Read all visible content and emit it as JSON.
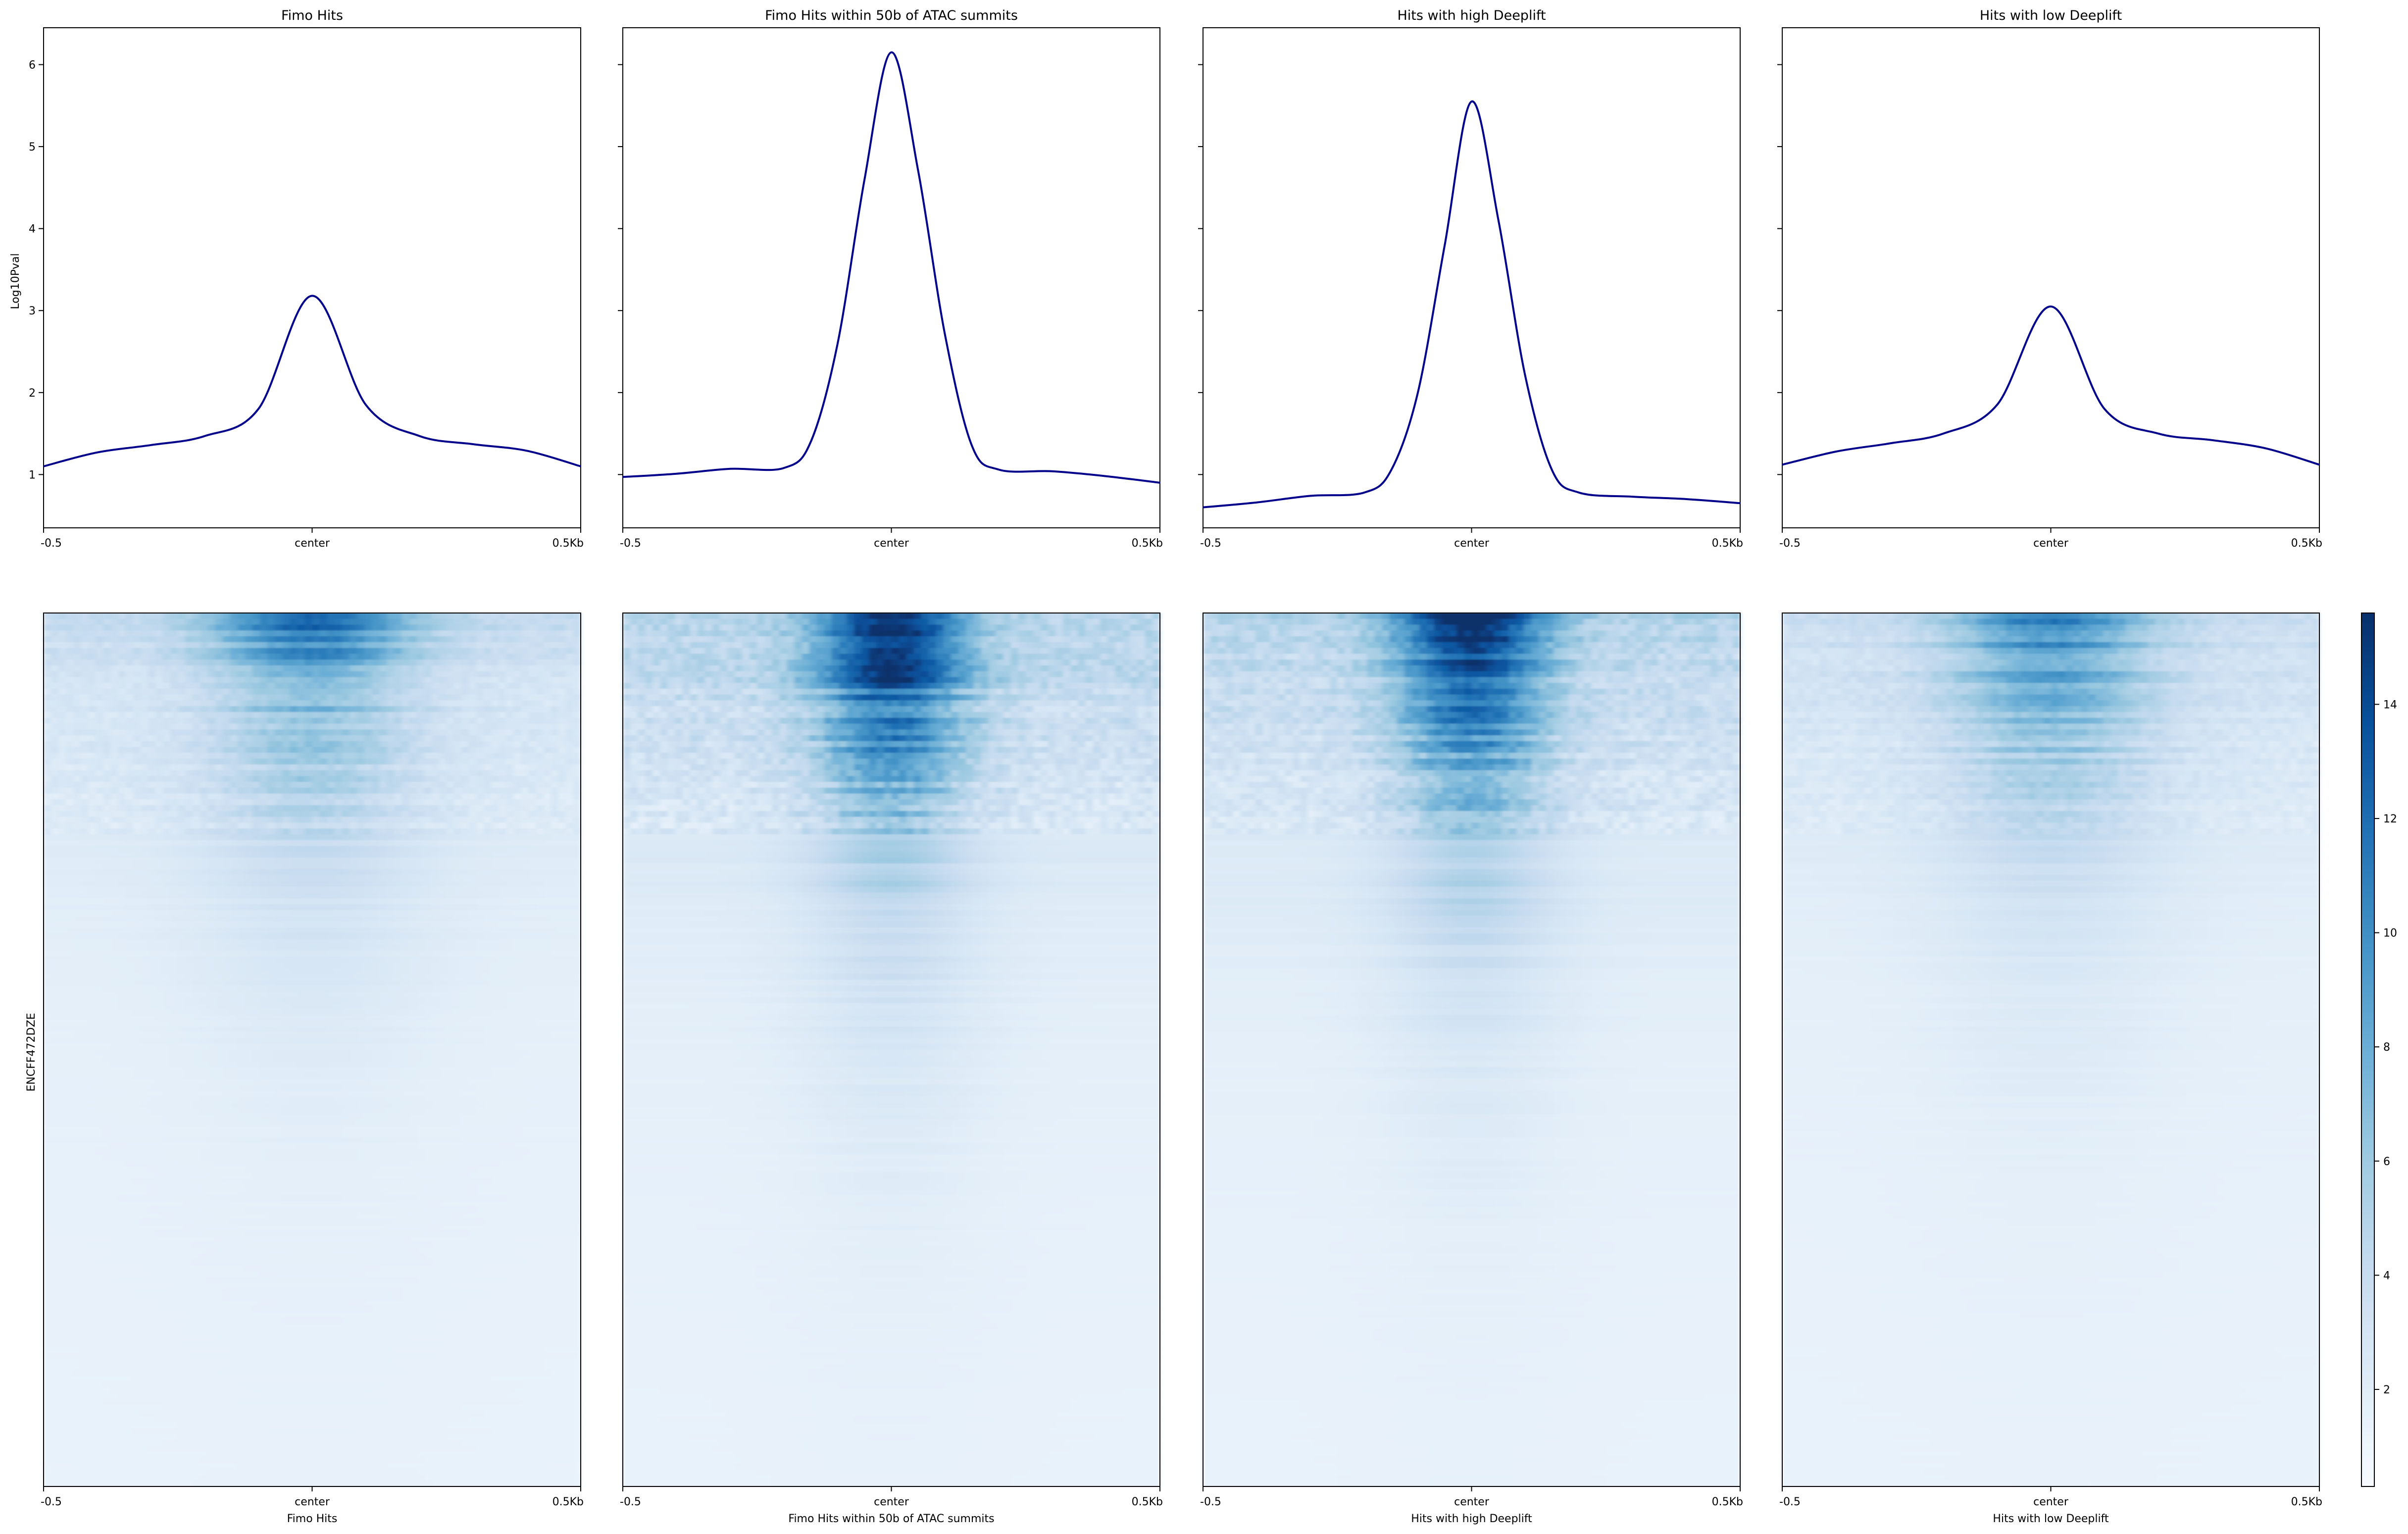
{
  "chart_data": [
    {
      "type": "line",
      "panel": "profile",
      "title": "Fimo Hits",
      "ylabel": "Log10Pval",
      "x": [
        -0.5,
        -0.4,
        -0.3,
        -0.2,
        -0.1,
        0,
        0.1,
        0.2,
        0.3,
        0.4,
        0.5
      ],
      "xtick_labels": [
        "-0.5",
        "center",
        "0.5Kb"
      ],
      "ylim": [
        0.35,
        6.45
      ],
      "yticks": [
        1,
        2,
        3,
        4,
        5,
        6
      ],
      "series": [
        {
          "values": [
            1.1,
            1.27,
            1.36,
            1.47,
            1.8,
            3.18,
            1.85,
            1.47,
            1.37,
            1.29,
            1.1
          ]
        }
      ],
      "line_color": "#00008b"
    },
    {
      "type": "line",
      "panel": "profile",
      "title": "Fimo Hits within 50b of ATAC summits",
      "x": [
        -0.5,
        -0.4,
        -0.3,
        -0.2,
        -0.15,
        -0.1,
        -0.05,
        0,
        0.05,
        0.1,
        0.15,
        0.2,
        0.3,
        0.4,
        0.5
      ],
      "xtick_labels": [
        "-0.5",
        "center",
        "0.5Kb"
      ],
      "ylim": [
        0.35,
        6.45
      ],
      "series": [
        {
          "values": [
            0.97,
            1.01,
            1.07,
            1.08,
            1.4,
            2.6,
            4.6,
            6.15,
            4.7,
            2.7,
            1.35,
            1.06,
            1.04,
            0.98,
            0.9
          ]
        }
      ],
      "line_color": "#00008b"
    },
    {
      "type": "line",
      "panel": "profile",
      "title": "Hits with high Deeplift",
      "x": [
        -0.5,
        -0.4,
        -0.3,
        -0.2,
        -0.15,
        -0.1,
        -0.05,
        0,
        0.05,
        0.1,
        0.15,
        0.2,
        0.3,
        0.4,
        0.5
      ],
      "xtick_labels": [
        "-0.5",
        "center",
        "0.5Kb"
      ],
      "ylim": [
        0.35,
        6.45
      ],
      "series": [
        {
          "values": [
            0.6,
            0.66,
            0.74,
            0.78,
            1.05,
            2.0,
            3.8,
            5.55,
            4.1,
            2.2,
            1.05,
            0.78,
            0.73,
            0.7,
            0.65
          ]
        }
      ],
      "line_color": "#00008b"
    },
    {
      "type": "line",
      "panel": "profile",
      "title": "Hits with low Deeplift",
      "x": [
        -0.5,
        -0.4,
        -0.3,
        -0.2,
        -0.1,
        0,
        0.1,
        0.2,
        0.3,
        0.4,
        0.5
      ],
      "xtick_labels": [
        "-0.5",
        "center",
        "0.5Kb"
      ],
      "ylim": [
        0.35,
        6.45
      ],
      "series": [
        {
          "values": [
            1.12,
            1.28,
            1.38,
            1.5,
            1.85,
            3.05,
            1.8,
            1.5,
            1.42,
            1.32,
            1.12
          ]
        }
      ],
      "line_color": "#00008b"
    },
    {
      "type": "heatmap",
      "panel": "heatmap",
      "group_label": "ENCFF472DZE",
      "xlabels": [
        "Fimo Hits",
        "Fimo Hits within 50b of ATAC summits",
        "Hits with high Deeplift",
        "Hits with low Deeplift"
      ],
      "xtick_labels": [
        "-0.5",
        "center",
        "0.5Kb"
      ],
      "colormap": "Blues",
      "colorbar": {
        "range": [
          0.3,
          15.6
        ],
        "ticks": [
          2,
          4,
          6,
          8,
          10,
          12,
          14
        ]
      },
      "intensity": [
        0.55,
        1.0,
        0.95,
        0.55
      ]
    }
  ]
}
